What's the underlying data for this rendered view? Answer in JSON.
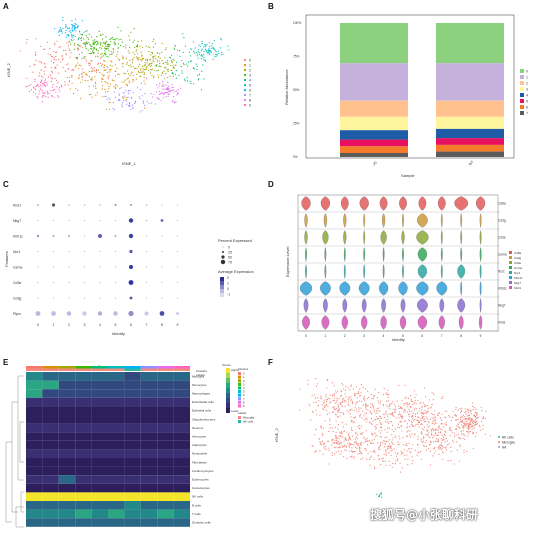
{
  "panels": {
    "A": {
      "letter": "A",
      "xlabel": "tSNE_1",
      "ylabel": "tSNE_2",
      "legend": [
        "0",
        "1",
        "2",
        "3",
        "4",
        "5",
        "6",
        "7",
        "8",
        "9"
      ]
    },
    "B": {
      "letter": "B",
      "xlabel": "Sample",
      "ylabel": "Relative Abundance"
    },
    "C": {
      "letter": "C",
      "xlabel": "Identity",
      "ylabel": "Features",
      "size_legend_title": "Percent Expressed",
      "size_legend_values": [
        "0",
        "25",
        "50",
        "75"
      ],
      "color_legend_title": "Average Expression",
      "color_legend_values": [
        "2",
        "1",
        "0",
        "-1"
      ]
    },
    "D": {
      "letter": "D",
      "xlabel": "Identity",
      "ylabel": "Expression Level"
    },
    "E": {
      "letter": "E",
      "top_title": "Scores",
      "legend_right": [
        "Clusters",
        "Labels"
      ],
      "labels_legend_items": [
        "Microglia",
        "NK cells"
      ],
      "scale_title": "Scores"
    },
    "F": {
      "letter": "F",
      "xlabel": "tSNE_1",
      "ylabel": "tSNE_2",
      "legend": [
        "NK cells",
        "Microglia",
        "NA"
      ]
    }
  },
  "colors": {
    "clusters": [
      "#f8766d",
      "#d89000",
      "#a3a500",
      "#39b600",
      "#00bf7d",
      "#00bfc4",
      "#00b0f6",
      "#9590ff",
      "#e76bf3",
      "#ff62bc"
    ],
    "stack": [
      "#8bd17e",
      "#c4b2dc",
      "#ffc18e",
      "#fff59d",
      "#1f5ca8",
      "#e8115f",
      "#f47b2a",
      "#5b5b5b"
    ],
    "microglia": "#f08a7e",
    "nk": "#2bb7a7",
    "na": "#9aa0c8"
  },
  "chart_data": [
    {
      "panel": "A",
      "type": "scatter",
      "xlabel": "tSNE_1",
      "ylabel": "tSNE_2",
      "series": [
        {
          "name": "0"
        },
        {
          "name": "1"
        },
        {
          "name": "2"
        },
        {
          "name": "3"
        },
        {
          "name": "4"
        },
        {
          "name": "5"
        },
        {
          "name": "6"
        },
        {
          "name": "7"
        },
        {
          "name": "8"
        },
        {
          "name": "9"
        }
      ]
    },
    {
      "panel": "B",
      "type": "bar",
      "xlabel": "Sample",
      "ylabel": "Relative Abundance",
      "categories": [
        "JG",
        "WT"
      ],
      "yticks": [
        "0%",
        "25%",
        "50%",
        "75%",
        "100%"
      ],
      "legend": [
        "0",
        "1",
        "2",
        "3",
        "4",
        "5",
        "6",
        "7"
      ],
      "series": [
        {
          "name": "0",
          "values": [
            30,
            30
          ]
        },
        {
          "name": "1",
          "values": [
            28,
            28
          ]
        },
        {
          "name": "2",
          "values": [
            12,
            12
          ]
        },
        {
          "name": "3",
          "values": [
            10,
            9
          ]
        },
        {
          "name": "4",
          "values": [
            7,
            7
          ]
        },
        {
          "name": "5",
          "values": [
            5,
            5
          ]
        },
        {
          "name": "6",
          "values": [
            5,
            5
          ]
        },
        {
          "name": "7",
          "values": [
            3,
            4
          ]
        }
      ]
    },
    {
      "panel": "C",
      "type": "scatter",
      "xlabel": "Identity",
      "ylabel": "Features",
      "features": [
        "Klrd1",
        "Nkg7",
        "Klrb1c",
        "Ncr1",
        "Gzma",
        "Cd3e",
        "Cd3g",
        "Ptprc"
      ],
      "identities": [
        "0",
        "1",
        "2",
        "3",
        "4",
        "5",
        "6",
        "7",
        "8",
        "9"
      ]
    },
    {
      "panel": "D",
      "type": "violin",
      "xlabel": "Identity",
      "ylabel": "Expression Level",
      "genes": [
        "Cd8a",
        "Cd3g",
        "Cd3e",
        "Gzma",
        "Ncr1",
        "Klrb1c",
        "Nkg7",
        "Klrd1"
      ],
      "legend": [
        "Cd8a",
        "Cd3g",
        "Cd3e",
        "Gzma",
        "Ncr1",
        "Klrb1c",
        "Nkg7",
        "Klrd1"
      ],
      "identities": [
        "0",
        "1",
        "2",
        "3",
        "4",
        "5",
        "6",
        "7",
        "8",
        "9"
      ]
    },
    {
      "panel": "E",
      "type": "heatmap",
      "title": "Scores",
      "rows": [
        "Microglia",
        "Monocytes",
        "Macrophages",
        "Endothelial cells",
        "Epithelial cells",
        "Oligodendrocytes",
        "Neurons",
        "Astrocytes",
        "Adipocytes",
        "Neutrophils",
        "Fibroblasts",
        "Cardiomyocytes",
        "Erythrocytes",
        "Granulocytes",
        "NK cells",
        "B cells",
        "T cells",
        "Dendritic cells"
      ],
      "n_cols": 10,
      "scale_ticks": [
        "Higher",
        "Lower"
      ]
    },
    {
      "panel": "F",
      "type": "scatter",
      "xlabel": "tSNE_1",
      "ylabel": "tSNE_2",
      "series": [
        {
          "name": "NK cells"
        },
        {
          "name": "Microglia"
        },
        {
          "name": "NA"
        }
      ]
    }
  ],
  "watermark": "搜狐号@小张聊科研"
}
